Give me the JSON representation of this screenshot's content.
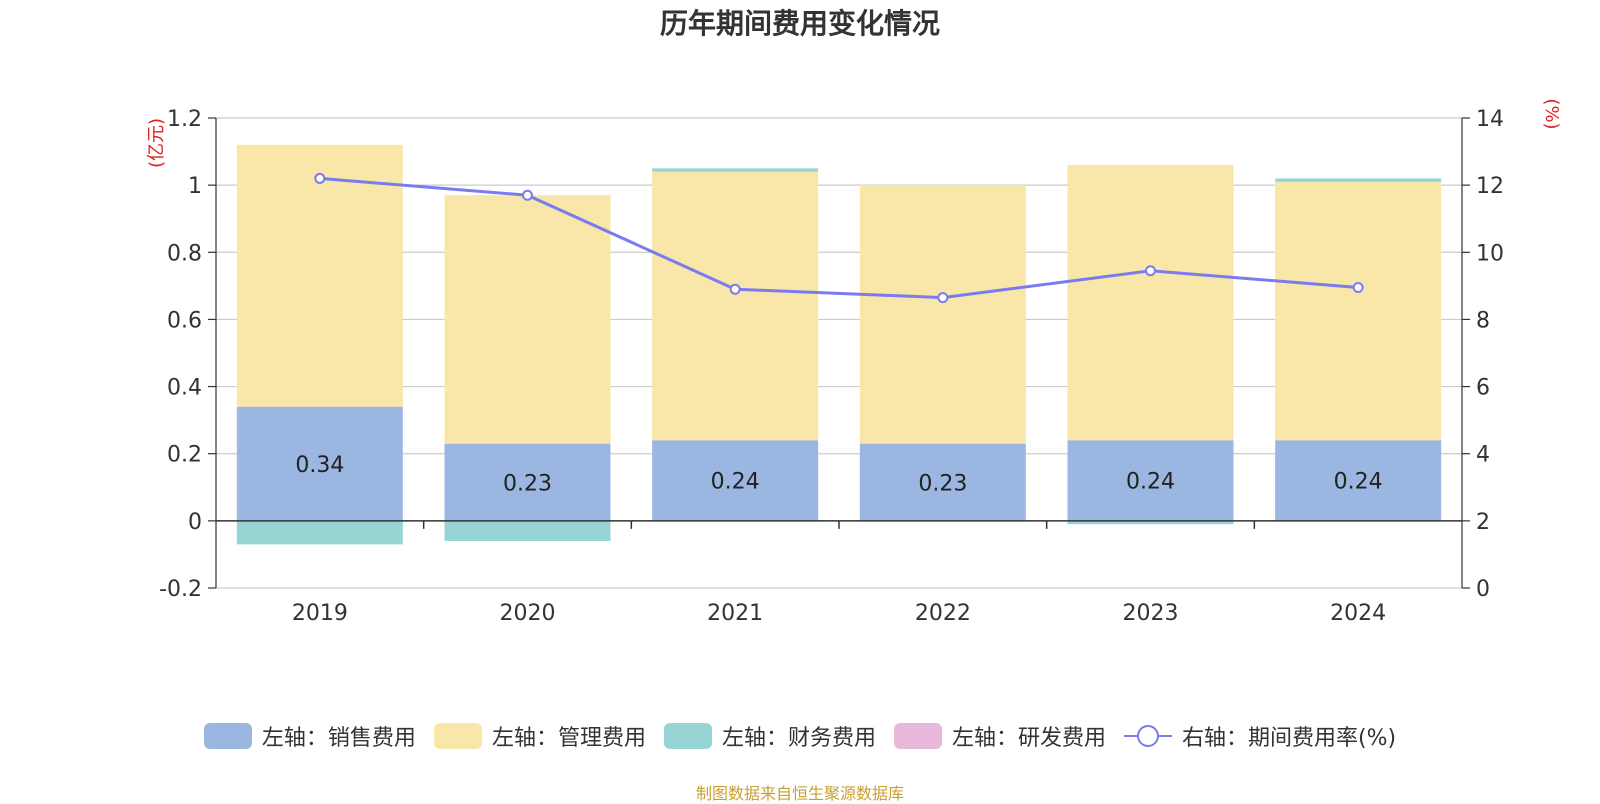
{
  "chart_data": {
    "type": "bar",
    "title": "历年期间费用变化情况",
    "categories": [
      "2019",
      "2020",
      "2021",
      "2022",
      "2023",
      "2024"
    ],
    "left_axis": {
      "unit_label": "(亿元)",
      "ylim": [
        -0.2,
        1.2
      ],
      "ticks": [
        "-0.2",
        "0",
        "0.2",
        "0.4",
        "0.6",
        "0.8",
        "1",
        "1.2"
      ]
    },
    "right_axis": {
      "unit_label": "(%)",
      "ylim": [
        0,
        14
      ],
      "ticks": [
        "0",
        "2",
        "4",
        "6",
        "8",
        "10",
        "12",
        "14"
      ]
    },
    "series": [
      {
        "name": "左轴：销售费用",
        "type": "bar",
        "stack": true,
        "color": "#9bb6e0",
        "values": [
          0.34,
          0.23,
          0.24,
          0.23,
          0.24,
          0.24
        ],
        "labels": [
          "0.34",
          "0.23",
          "0.24",
          "0.23",
          "0.24",
          "0.24"
        ]
      },
      {
        "name": "左轴：管理费用",
        "type": "bar",
        "stack": true,
        "color": "#f8e7a8",
        "values": [
          0.78,
          0.74,
          0.8,
          0.77,
          0.82,
          0.77
        ]
      },
      {
        "name": "左轴：财务费用",
        "type": "bar",
        "stack": true,
        "color": "#97d4d4",
        "values": [
          -0.07,
          -0.06,
          0.01,
          0.0,
          -0.01,
          0.01
        ]
      },
      {
        "name": "左轴：研发费用",
        "type": "bar",
        "stack": true,
        "color": "#e8b9db",
        "values": [
          0,
          0,
          0,
          0,
          0,
          0
        ]
      },
      {
        "name": "右轴：期间费用率(%)",
        "type": "line",
        "axis": "right",
        "color": "#7b7bef",
        "values": [
          12.2,
          11.7,
          8.9,
          8.65,
          9.45,
          8.95
        ]
      }
    ]
  },
  "source": "制图数据来自恒生聚源数据库"
}
